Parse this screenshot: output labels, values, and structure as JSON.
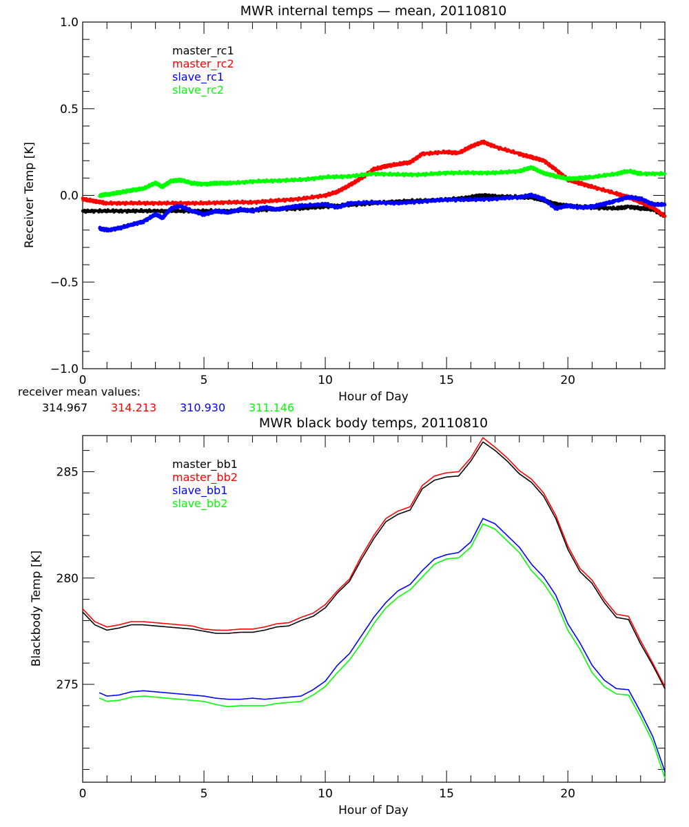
{
  "chart_data": [
    {
      "type": "line",
      "title": "MWR internal temps — mean, 20110810",
      "xlabel": "Hour of Day",
      "ylabel": "Receiver Temp [K]",
      "xlim": [
        0,
        24
      ],
      "ylim": [
        -1.0,
        1.0
      ],
      "xticks": [
        0,
        5,
        10,
        15,
        20
      ],
      "xtick_labels": [
        "0",
        "5",
        "10",
        "15",
        "20"
      ],
      "yticks": [
        -1.0,
        -0.5,
        0.0,
        0.5,
        1.0
      ],
      "ytick_labels": [
        "−1.0",
        "−0.5",
        "0.0",
        "0.5",
        "1.0"
      ],
      "grid": false,
      "legend_position": "top-left",
      "series": [
        {
          "name": "master_rc1",
          "color": "#000000",
          "x": [
            0,
            1,
            2,
            3,
            4,
            5,
            6,
            7,
            8,
            9,
            10,
            11,
            12,
            13,
            14,
            15,
            16,
            16.5,
            17,
            18,
            18.5,
            19,
            19.5,
            20,
            21,
            22,
            22.5,
            23,
            23.5,
            24
          ],
          "y": [
            -0.09,
            -0.09,
            -0.09,
            -0.09,
            -0.09,
            -0.09,
            -0.09,
            -0.085,
            -0.08,
            -0.075,
            -0.065,
            -0.055,
            -0.045,
            -0.035,
            -0.03,
            -0.025,
            -0.01,
            0.0,
            -0.005,
            -0.01,
            -0.01,
            -0.03,
            -0.05,
            -0.06,
            -0.07,
            -0.075,
            -0.065,
            -0.075,
            -0.08,
            -0.12
          ]
        },
        {
          "name": "master_rc2",
          "color": "#ff0000",
          "x": [
            0,
            0.5,
            1,
            2,
            3,
            4,
            5,
            6,
            7,
            8,
            9,
            10,
            10.5,
            11,
            11.5,
            12,
            12.5,
            13,
            13.5,
            14,
            15,
            15.5,
            16,
            16.5,
            17,
            18,
            18.5,
            19,
            19.5,
            20,
            20.5,
            21,
            22,
            22.5,
            23,
            23.5,
            24
          ],
          "y": [
            -0.02,
            -0.035,
            -0.045,
            -0.045,
            -0.045,
            -0.045,
            -0.045,
            -0.04,
            -0.04,
            -0.03,
            -0.02,
            0.0,
            0.02,
            0.06,
            0.1,
            0.15,
            0.17,
            0.18,
            0.19,
            0.24,
            0.25,
            0.245,
            0.28,
            0.31,
            0.28,
            0.24,
            0.22,
            0.2,
            0.15,
            0.09,
            0.07,
            0.05,
            0.01,
            -0.01,
            -0.04,
            -0.07,
            -0.12
          ]
        },
        {
          "name": "slave_rc1",
          "color": "#0000ff",
          "x": [
            0.7,
            1,
            1.5,
            2,
            2.5,
            3,
            3.3,
            3.6,
            4,
            4.5,
            5,
            5.5,
            6,
            6.5,
            7,
            7.5,
            8,
            8.5,
            9,
            10,
            10.5,
            11,
            12,
            13,
            14,
            15,
            16,
            17,
            18,
            18.5,
            19,
            19.5,
            20,
            20.5,
            21,
            21.5,
            22,
            22.5,
            23,
            23.5,
            24
          ],
          "y": [
            -0.19,
            -0.2,
            -0.19,
            -0.17,
            -0.15,
            -0.11,
            -0.13,
            -0.08,
            -0.06,
            -0.09,
            -0.11,
            -0.09,
            -0.1,
            -0.08,
            -0.09,
            -0.07,
            -0.08,
            -0.07,
            -0.06,
            -0.05,
            -0.07,
            -0.045,
            -0.04,
            -0.045,
            -0.035,
            -0.025,
            -0.025,
            -0.02,
            -0.01,
            0.0,
            -0.02,
            -0.075,
            -0.06,
            -0.07,
            -0.065,
            -0.05,
            -0.03,
            -0.01,
            -0.02,
            -0.05,
            -0.055
          ]
        },
        {
          "name": "slave_rc2",
          "color": "#00ff00",
          "x": [
            0.7,
            1,
            1.5,
            2,
            2.5,
            3,
            3.3,
            3.6,
            4,
            4.5,
            5,
            5.5,
            6,
            7,
            8,
            9,
            10,
            11,
            12,
            13,
            14,
            15,
            16,
            17,
            18,
            18.5,
            19,
            19.5,
            20,
            20.5,
            21,
            22,
            22.5,
            23,
            24
          ],
          "y": [
            0.0,
            0.005,
            0.015,
            0.03,
            0.04,
            0.07,
            0.05,
            0.08,
            0.09,
            0.07,
            0.065,
            0.07,
            0.07,
            0.08,
            0.085,
            0.09,
            0.105,
            0.11,
            0.125,
            0.12,
            0.12,
            0.13,
            0.13,
            0.13,
            0.14,
            0.16,
            0.13,
            0.11,
            0.095,
            0.1,
            0.105,
            0.125,
            0.14,
            0.125,
            0.125
          ]
        }
      ],
      "annotation": {
        "label": "receiver mean values:",
        "values": [
          {
            "text": "314.967",
            "color": "#000000"
          },
          {
            "text": "314.213",
            "color": "#ff0000"
          },
          {
            "text": "310.930",
            "color": "#0000ff"
          },
          {
            "text": "311.146",
            "color": "#00ff00"
          }
        ]
      }
    },
    {
      "type": "line",
      "title": "MWR black body temps, 20110810",
      "xlabel": "Hour of Day",
      "ylabel": "Blackbody Temp [K]",
      "xlim": [
        0,
        24
      ],
      "ylim": [
        270.4,
        286.7
      ],
      "xticks": [
        0,
        5,
        10,
        15,
        20
      ],
      "xtick_labels": [
        "0",
        "5",
        "10",
        "15",
        "20"
      ],
      "yticks": [
        275,
        280,
        285
      ],
      "ytick_labels": [
        "275",
        "280",
        "285"
      ],
      "grid": false,
      "legend_position": "top-left",
      "series": [
        {
          "name": "master_bb1",
          "color": "#000000",
          "x": [
            0,
            0.5,
            1,
            1.5,
            2,
            2.5,
            3,
            3.5,
            4,
            4.5,
            5,
            5.5,
            6,
            6.5,
            7,
            7.5,
            8,
            8.5,
            9,
            9.5,
            10,
            10.5,
            11,
            11.5,
            12,
            12.5,
            13,
            13.5,
            14,
            14.5,
            15,
            15.5,
            16,
            16.5,
            17,
            17.5,
            18,
            18.5,
            19,
            19.5,
            20,
            20.5,
            21,
            21.5,
            22,
            22.5,
            23,
            23.5,
            24
          ],
          "y": [
            278.4,
            277.8,
            277.55,
            277.65,
            277.8,
            277.8,
            277.75,
            277.7,
            277.65,
            277.6,
            277.5,
            277.4,
            277.4,
            277.45,
            277.45,
            277.55,
            277.7,
            277.75,
            278.0,
            278.2,
            278.6,
            279.3,
            279.85,
            280.9,
            281.85,
            282.65,
            283.0,
            283.2,
            284.2,
            284.6,
            284.75,
            284.8,
            285.5,
            286.4,
            286.0,
            285.5,
            284.9,
            284.5,
            283.85,
            282.8,
            281.35,
            280.3,
            279.75,
            278.85,
            278.15,
            278.05,
            276.9,
            275.9,
            274.8
          ]
        },
        {
          "name": "master_bb2",
          "color": "#ff0000",
          "x": [
            0,
            0.5,
            1,
            1.5,
            2,
            2.5,
            3,
            3.5,
            4,
            4.5,
            5,
            5.5,
            6,
            6.5,
            7,
            7.5,
            8,
            8.5,
            9,
            9.5,
            10,
            10.5,
            11,
            11.5,
            12,
            12.5,
            13,
            13.5,
            14,
            14.5,
            15,
            15.5,
            16,
            16.5,
            17,
            17.5,
            18,
            18.5,
            19,
            19.5,
            20,
            20.5,
            21,
            21.5,
            22,
            22.5,
            23,
            23.5,
            24
          ],
          "y": [
            278.55,
            277.95,
            277.7,
            277.8,
            277.95,
            277.95,
            277.9,
            277.85,
            277.8,
            277.75,
            277.6,
            277.55,
            277.55,
            277.6,
            277.6,
            277.7,
            277.85,
            277.9,
            278.15,
            278.35,
            278.75,
            279.4,
            279.95,
            281.05,
            282.0,
            282.8,
            283.15,
            283.35,
            284.35,
            284.8,
            284.95,
            285.0,
            285.65,
            286.6,
            286.15,
            285.65,
            285.05,
            284.65,
            284.0,
            282.95,
            281.5,
            280.45,
            279.9,
            279.0,
            278.3,
            278.2,
            277.05,
            276.0,
            274.9
          ]
        },
        {
          "name": "slave_bb1",
          "color": "#0000ff",
          "x": [
            0.7,
            1,
            1.5,
            2,
            2.5,
            3,
            3.5,
            4,
            4.5,
            5,
            5.5,
            6,
            6.5,
            7,
            7.5,
            8,
            8.5,
            9,
            9.5,
            10,
            10.5,
            11,
            11.5,
            12,
            12.5,
            13,
            13.5,
            14,
            14.5,
            15,
            15.5,
            16,
            16.5,
            17,
            17.5,
            18,
            18.5,
            19,
            19.5,
            20,
            20.5,
            21,
            21.5,
            22,
            22.5,
            23,
            23.5,
            24
          ],
          "y": [
            274.6,
            274.45,
            274.5,
            274.65,
            274.7,
            274.65,
            274.6,
            274.55,
            274.5,
            274.45,
            274.35,
            274.3,
            274.3,
            274.35,
            274.3,
            274.35,
            274.4,
            274.45,
            274.75,
            275.15,
            275.9,
            276.45,
            277.3,
            278.15,
            278.85,
            279.4,
            279.7,
            280.35,
            280.9,
            281.1,
            281.2,
            281.7,
            282.8,
            282.55,
            282.0,
            281.45,
            280.65,
            280.05,
            279.2,
            277.85,
            276.95,
            275.9,
            275.2,
            274.8,
            274.75,
            273.7,
            272.55,
            270.9
          ]
        },
        {
          "name": "slave_bb2",
          "color": "#00ff00",
          "x": [
            0.7,
            1,
            1.5,
            2,
            2.5,
            3,
            3.5,
            4,
            4.5,
            5,
            5.5,
            6,
            6.5,
            7,
            7.5,
            8,
            8.5,
            9,
            9.5,
            10,
            10.5,
            11,
            11.5,
            12,
            12.5,
            13,
            13.5,
            14,
            14.5,
            15,
            15.5,
            16,
            16.5,
            17,
            17.5,
            18,
            18.5,
            19,
            19.5,
            20,
            20.5,
            21,
            21.5,
            22,
            22.5,
            23,
            23.5,
            24
          ],
          "y": [
            274.35,
            274.2,
            274.25,
            274.4,
            274.45,
            274.4,
            274.35,
            274.3,
            274.25,
            274.2,
            274.05,
            273.95,
            274.0,
            274.0,
            274.0,
            274.1,
            274.15,
            274.2,
            274.5,
            274.9,
            275.55,
            276.15,
            276.95,
            277.85,
            278.6,
            279.1,
            279.45,
            280.05,
            280.65,
            280.9,
            280.95,
            281.45,
            282.55,
            282.3,
            281.75,
            281.2,
            280.35,
            279.75,
            278.9,
            277.55,
            276.65,
            275.55,
            274.9,
            274.55,
            274.5,
            273.45,
            272.3,
            270.6
          ]
        }
      ]
    }
  ]
}
